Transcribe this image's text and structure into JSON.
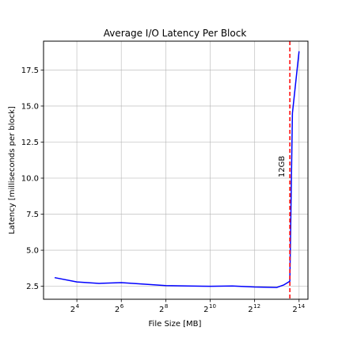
{
  "chart_data": {
    "type": "line",
    "title": "Average I/O Latency Per Block",
    "xlabel": "File Size [MB]",
    "ylabel": "Latency [milliseconds per block]",
    "x_scale": "log2",
    "xlim_log2": [
      2.5,
      14.4
    ],
    "ylim": [
      1.6,
      19.5
    ],
    "grid": true,
    "x_ticks": [
      {
        "base": "2",
        "exp": "4",
        "log2": 4
      },
      {
        "base": "2",
        "exp": "6",
        "log2": 6
      },
      {
        "base": "2",
        "exp": "8",
        "log2": 8
      },
      {
        "base": "2",
        "exp": "10",
        "log2": 10
      },
      {
        "base": "2",
        "exp": "12",
        "log2": 12
      },
      {
        "base": "2",
        "exp": "14",
        "log2": 14
      }
    ],
    "y_ticks": [
      {
        "label": "2.5",
        "value": 2.5
      },
      {
        "label": "5.0",
        "value": 5.0
      },
      {
        "label": "7.5",
        "value": 7.5
      },
      {
        "label": "10.0",
        "value": 10.0
      },
      {
        "label": "12.5",
        "value": 12.5
      },
      {
        "label": "15.0",
        "value": 15.0
      },
      {
        "label": "17.5",
        "value": 17.5
      }
    ],
    "series": [
      {
        "color": "#0000ff",
        "x": [
          8,
          16,
          32,
          64,
          128,
          256,
          512,
          1024,
          2048,
          4096,
          8192,
          10240,
          12288,
          13312,
          16384
        ],
        "y": [
          3.1,
          2.8,
          2.7,
          2.75,
          2.65,
          2.55,
          2.52,
          2.5,
          2.52,
          2.45,
          2.42,
          2.6,
          2.85,
          14.5,
          18.8
        ]
      }
    ],
    "reference_line": {
      "x": 12288,
      "label": "12GB",
      "color": "#ff0000",
      "style": "dashed"
    }
  }
}
